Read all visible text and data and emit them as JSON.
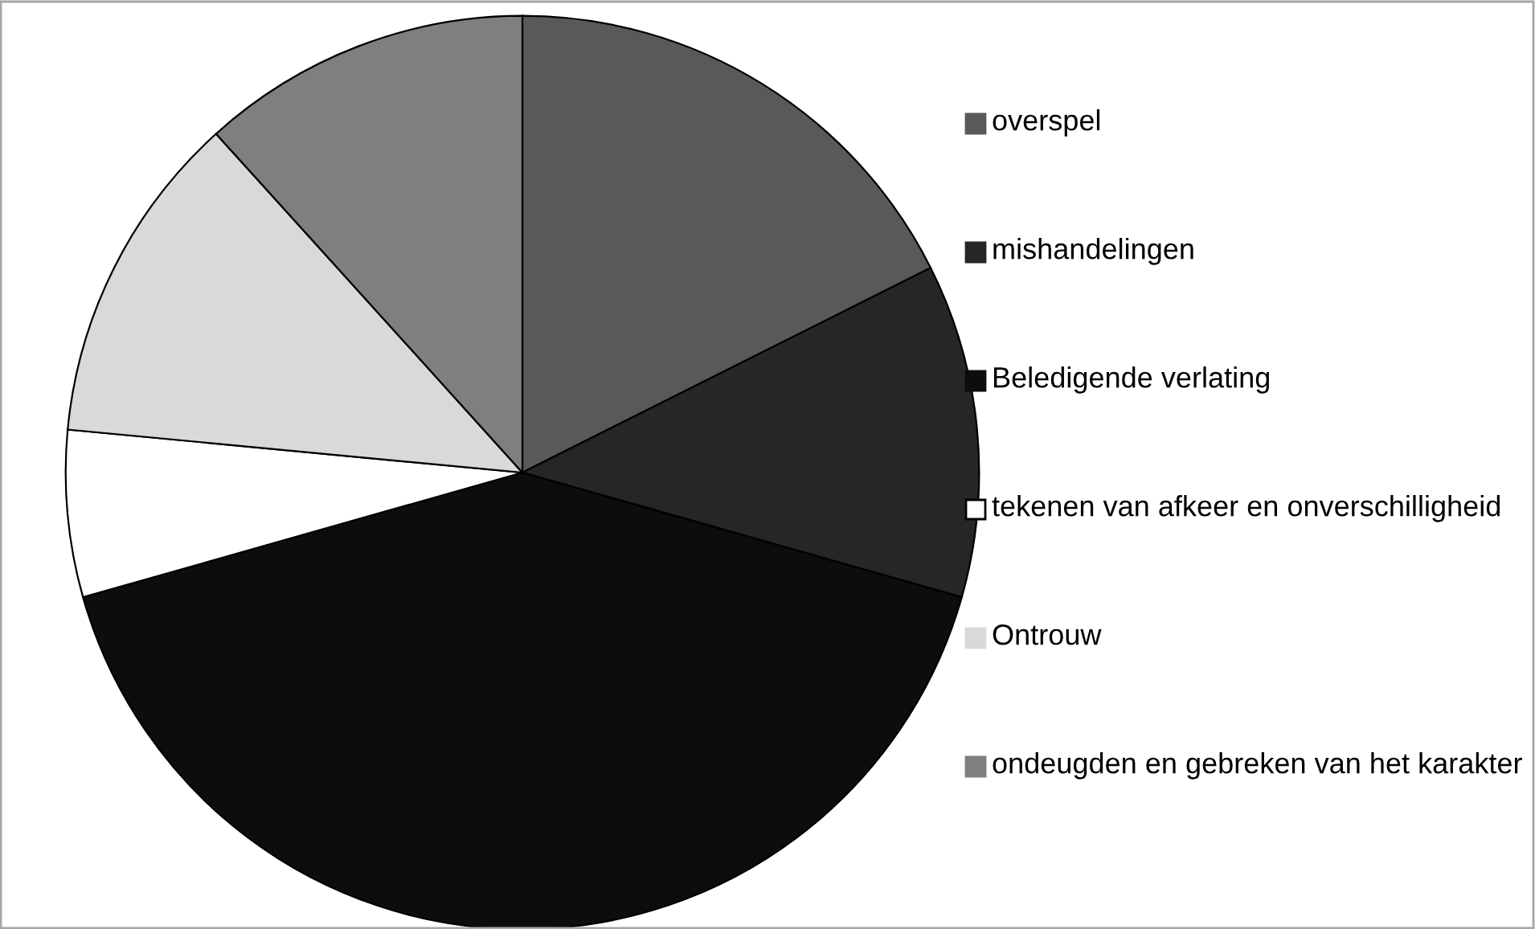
{
  "chart_data": {
    "type": "pie",
    "categories": [
      "overspel",
      "mishandelingen",
      "Beledigende verlating",
      "tekenen van afkeer en onverschilligheid",
      "Ontrouw",
      "ondeugden en gebreken van het karakter"
    ],
    "values": [
      17.6,
      11.8,
      41.2,
      5.9,
      11.8,
      11.7
    ],
    "colors": [
      "#595959",
      "#262626",
      "#0d0d0d",
      "#ffffff",
      "#d9d9d9",
      "#7f7f7f"
    ],
    "legend": "right"
  }
}
